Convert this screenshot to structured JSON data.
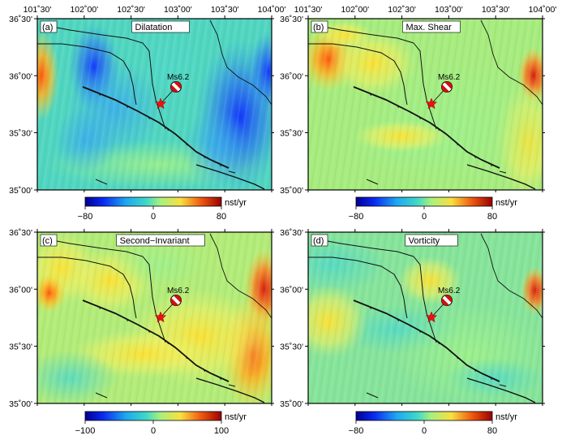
{
  "figure": {
    "top_ticks": [
      "101˚30'",
      "102˚00'",
      "102˚30'",
      "103˚00'",
      "103˚30'",
      "104˚00'"
    ],
    "lat_ticks": [
      "36˚30'",
      "36˚00'",
      "35˚30'",
      "35˚00'"
    ],
    "event_label": "Ms6.2",
    "colorbar_unit": "nst/yr",
    "colors": {
      "background": "#4ad6c4",
      "low": "#0b18d8",
      "mid": "#9ef08a",
      "high": "#cc0b0b",
      "star": "#e81414",
      "fault": "#111111"
    }
  },
  "panels": [
    {
      "id": "a",
      "letter": "(a)",
      "title": "Dilatation",
      "theme": "dilatation",
      "colorbar": {
        "min_label": "−80",
        "mid_label": "0",
        "max_label": "80"
      }
    },
    {
      "id": "b",
      "letter": "(b)",
      "title": "Max. Shear",
      "theme": "shear",
      "colorbar": {
        "min_label": "−80",
        "mid_label": "0",
        "max_label": "80"
      }
    },
    {
      "id": "c",
      "letter": "(c)",
      "title": "Second−Invariant",
      "theme": "invariant",
      "colorbar": {
        "min_label": "−100",
        "mid_label": "0",
        "max_label": "100"
      }
    },
    {
      "id": "d",
      "letter": "(d)",
      "title": "Vorticity",
      "theme": "vorticity",
      "colorbar": {
        "min_label": "−80",
        "mid_label": "0",
        "max_label": "80"
      }
    }
  ]
}
